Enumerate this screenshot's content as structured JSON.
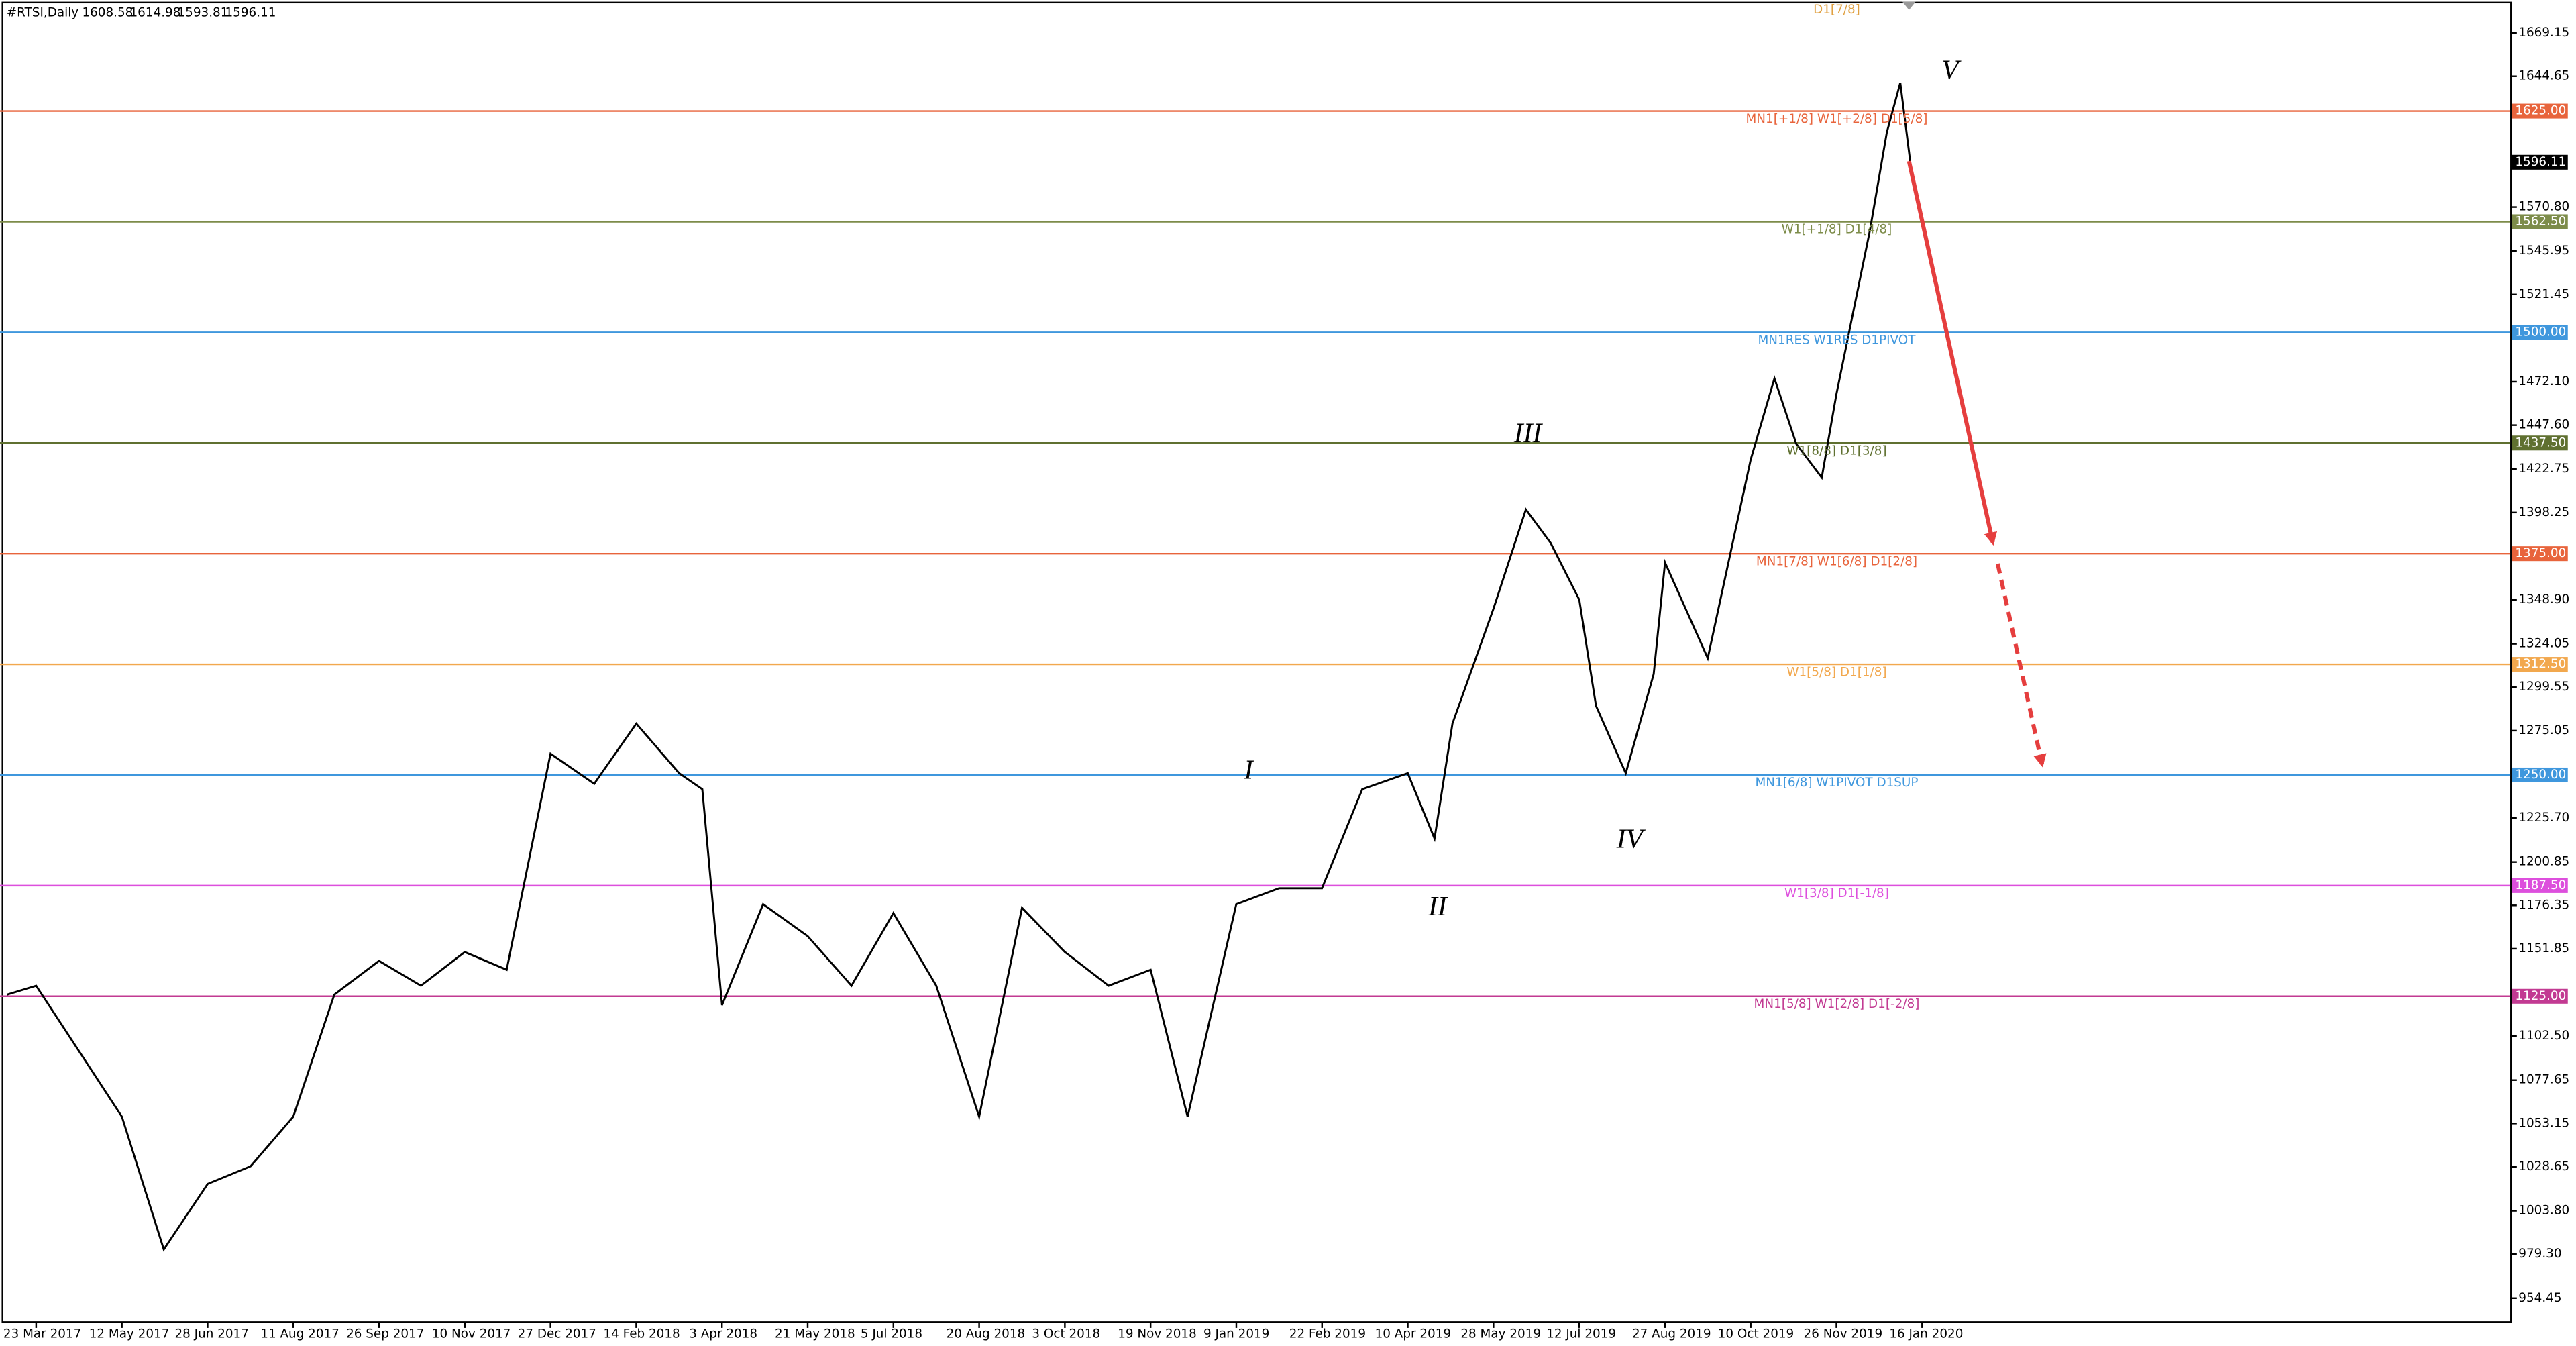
{
  "chart_data": {
    "type": "line",
    "symbol": "#RTSI,Daily",
    "ohlc": [
      1608.58,
      1614.98,
      1593.81,
      1596.11
    ],
    "current_price": 1596.11,
    "top_note": "D1[7/8]",
    "wave_labels": [
      "V",
      "III",
      "I",
      "II",
      "IV"
    ],
    "series": [
      {
        "name": "RTSI",
        "color": "#000000",
        "x": [
          "6 Mar 2017",
          "23 Mar 2017",
          "17 Apr 2017",
          "12 May 2017",
          "4 Jun 2017",
          "28 Jun 2017",
          "20 Jul 2017",
          "11 Aug 2017",
          "2 Sep 2017",
          "26 Sep 2017",
          "18 Oct 2017",
          "10 Nov 2017",
          "3 Dec 2017",
          "27 Dec 2017",
          "21 Jan 2018",
          "14 Feb 2018",
          "10 Mar 2018",
          "23 Mar 2018",
          "3 Apr 2018",
          "26 Apr 2018",
          "21 May 2018",
          "13 Jun 2018",
          "5 Jul 2018",
          "28 Jul 2018",
          "20 Aug 2018",
          "11 Sep 2018",
          "3 Oct 2018",
          "27 Oct 2018",
          "19 Nov 2018",
          "11 Dec 2018",
          "9 Jan 2019",
          "31 Jan 2019",
          "22 Feb 2019",
          "16 Mar 2019",
          "10 Apr 2019",
          "25 Apr 2019",
          "5 May 2019",
          "28 May 2019",
          "14 Jun 2019",
          "27 Jun 2019",
          "12 Jul 2019",
          "21 Jul 2019",
          "6 Aug 2019",
          "21 Aug 2019",
          "27 Aug 2019",
          "18 Sep 2019",
          "10 Oct 2019",
          "23 Oct 2019",
          "4 Nov 2019",
          "18 Nov 2019",
          "26 Nov 2019",
          "16 Dec 2019",
          "26 Dec 2019",
          "3 Jan 2020",
          "9 Jan 2020"
        ],
        "values": [
          1126,
          1131,
          1094,
          1057,
          982,
          1019,
          1029,
          1057,
          1126,
          1145,
          1131,
          1150,
          1140,
          1262,
          1245,
          1279,
          1251,
          1242,
          1120,
          1177,
          1159,
          1131,
          1172,
          1131,
          1057,
          1175,
          1150,
          1131,
          1140,
          1057,
          1177,
          1186,
          1186,
          1242,
          1251,
          1214,
          1279,
          1344,
          1400,
          1381,
          1349,
          1289,
          1251,
          1307,
          1370,
          1316,
          1428,
          1474,
          1437,
          1418,
          1465,
          1558,
          1613,
          1641,
          1596.11
        ]
      }
    ],
    "xticks": [
      "23 Mar 2017",
      "12 May 2017",
      "28 Jun 2017",
      "11 Aug 2017",
      "26 Sep 2017",
      "10 Nov 2017",
      "27 Dec 2017",
      "14 Feb 2018",
      "3 Apr 2018",
      "21 May 2018",
      "5 Jul 2018",
      "20 Aug 2018",
      "3 Oct 2018",
      "19 Nov 2018",
      "9 Jan 2019",
      "22 Feb 2019",
      "10 Apr 2019",
      "28 May 2019",
      "12 Jul 2019",
      "27 Aug 2019",
      "10 Oct 2019",
      "26 Nov 2019",
      "16 Jan 2020"
    ],
    "ylim": [
      940.5,
      1687.7
    ],
    "yticks": [
      954.45,
      {
        "value": 979.3,
        "label": "979.30"
      },
      {
        "value": 1003.8,
        "label": "1003.80"
      },
      1028.65,
      1053.15,
      1077.65,
      {
        "value": 1102.5,
        "label": "1102.50"
      },
      1151.85,
      1176.35,
      1200.85,
      {
        "value": 1225.7,
        "label": "1225.70"
      },
      1275.05,
      1299.55,
      1324.05,
      {
        "value": 1348.9,
        "label": "1348.90"
      },
      1398.25,
      1422.75,
      {
        "value": 1447.6,
        "label": "1447.60"
      },
      {
        "value": 1472.1,
        "label": "1472.10"
      },
      1521.45,
      1545.95,
      {
        "value": 1570.8,
        "label": "1570.80"
      },
      1644.65,
      1669.15
    ],
    "grid": false,
    "levels": [
      {
        "value": 1625,
        "label": "1625.00",
        "text": "MN1[+1/8] W1[+2/8] D1[5/8]",
        "color": "#e8643c"
      },
      {
        "value": 1562.5,
        "label": "1562.50",
        "text": "W1[+1/8] D1[4/8]",
        "color": "#7d8c4a"
      },
      {
        "value": 1500,
        "label": "1500.00",
        "text": "MN1RES W1RES D1PIVOT",
        "color": "#3f97dd"
      },
      {
        "value": 1437.5,
        "label": "1437.50",
        "text": "W1[8/8] D1[3/8]",
        "color": "#5f7030"
      },
      {
        "value": 1375,
        "label": "1375.00",
        "text": "MN1[7/8] W1[6/8] D1[2/8]",
        "color": "#e8643c"
      },
      {
        "value": 1312.5,
        "label": "1312.50",
        "text": "W1[5/8] D1[1/8]",
        "color": "#f2a84e"
      },
      {
        "value": 1250,
        "label": "1250.00",
        "text": "MN1[6/8] W1PIVOT D1SUP",
        "color": "#3f97dd"
      },
      {
        "value": 1187.5,
        "label": "1187.50",
        "text": "W1[3/8] D1[-1/8]",
        "color": "#dd4fdd"
      },
      {
        "value": 1125,
        "label": "1125.00",
        "text": "MN1[5/8] W1[2/8] D1[-2/8]",
        "color": "#c23a92"
      }
    ]
  }
}
